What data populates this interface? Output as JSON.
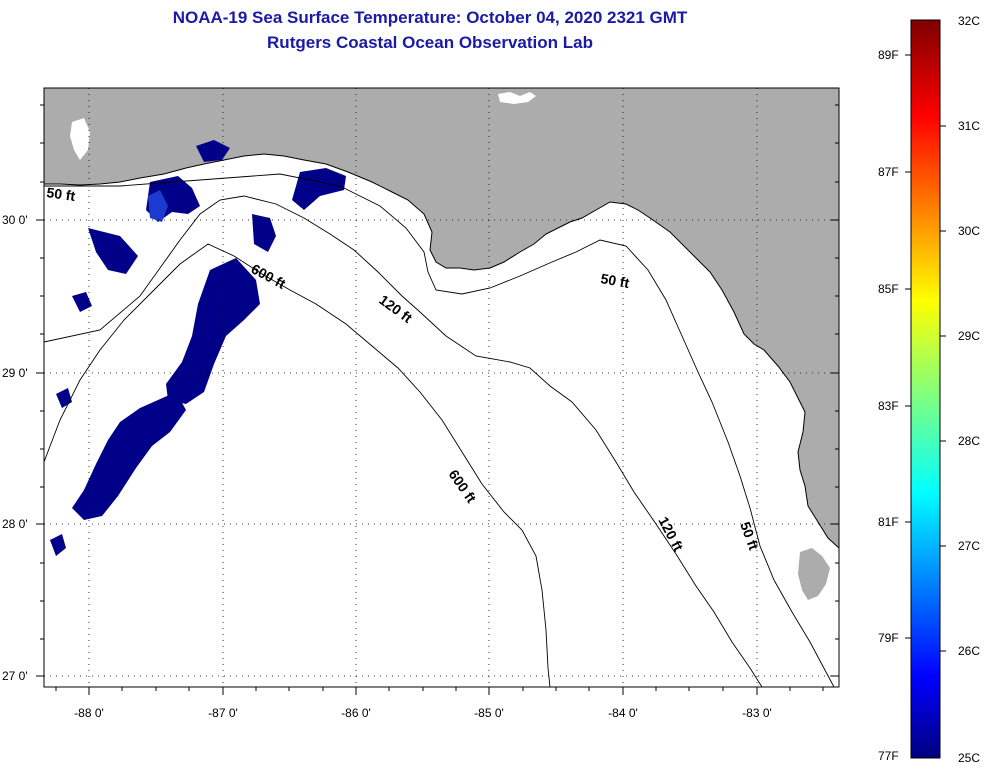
{
  "title": {
    "line1": "NOAA-19 Sea Surface Temperature:  October 04, 2020 2321 GMT",
    "line2": "Rutgers Coastal Ocean Observation Lab"
  },
  "axes": {
    "lon_labels": [
      "-88 0'",
      "-87 0'",
      "-86 0'",
      "-85 0'",
      "-84 0'",
      "-83 0'"
    ],
    "lat_labels": [
      "30 0'",
      "29 0'",
      "28 0'",
      "27 0'"
    ]
  },
  "depth_contours": [
    {
      "text": "50 ft"
    },
    {
      "text": "600 ft"
    },
    {
      "text": "120 ft"
    },
    {
      "text": "50 ft"
    },
    {
      "text": "600 ft"
    },
    {
      "text": "120 ft"
    },
    {
      "text": "50 ft"
    }
  ],
  "colorbar": {
    "fahrenheit": [
      "89F",
      "87F",
      "85F",
      "83F",
      "81F",
      "79F",
      "77F"
    ],
    "celsius": [
      "32C",
      "31C",
      "30C",
      "29C",
      "28C",
      "27C",
      "26C",
      "25C"
    ]
  },
  "colors": {
    "land": "#acacac",
    "water": "#ffffff",
    "sst_low": "#000088",
    "title": "#1a1aa6"
  }
}
